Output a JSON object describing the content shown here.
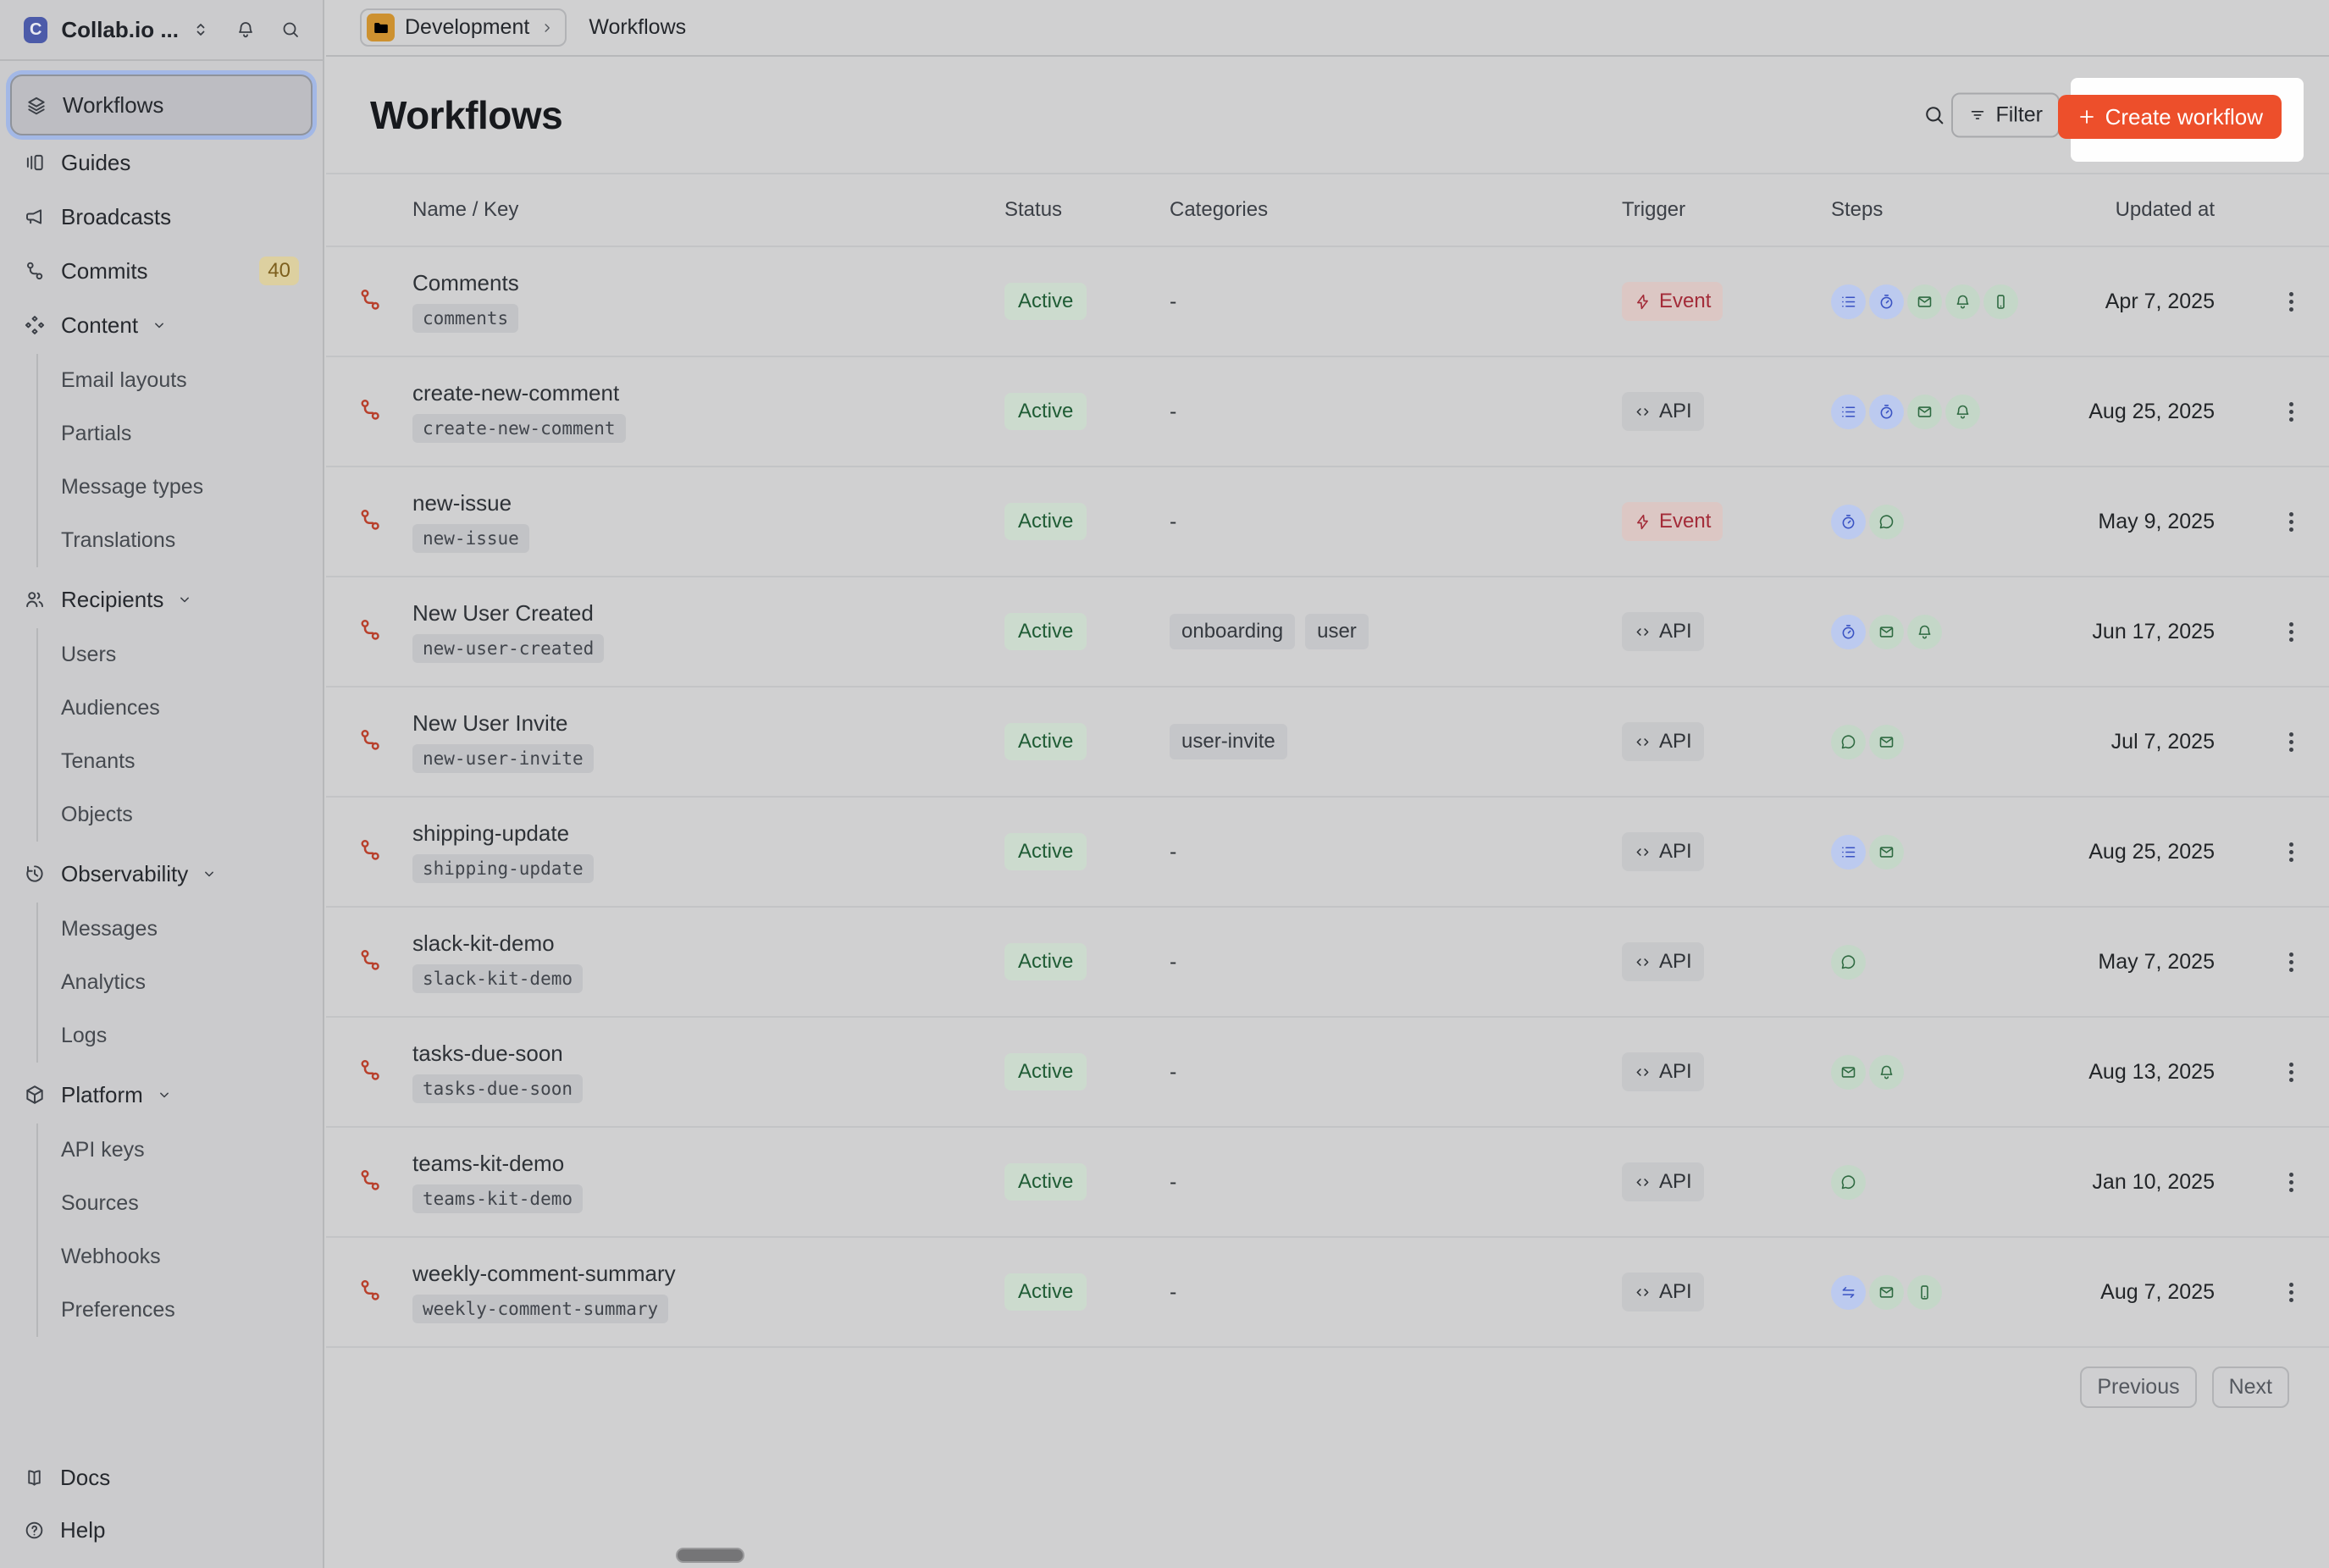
{
  "brand": {
    "name": "Collab.io ...",
    "logo_letter": "C"
  },
  "topbar": {
    "environment": "Development",
    "page": "Workflows"
  },
  "sidebar": {
    "items": [
      {
        "label": "Workflows",
        "icon": "layers",
        "selected": true
      },
      {
        "label": "Guides",
        "icon": "guides"
      },
      {
        "label": "Broadcasts",
        "icon": "megaphone"
      },
      {
        "label": "Commits",
        "icon": "commit",
        "badge": "40"
      },
      {
        "label": "Content",
        "icon": "content",
        "expandable": true,
        "children": [
          "Email layouts",
          "Partials",
          "Message types",
          "Translations"
        ]
      },
      {
        "label": "Recipients",
        "icon": "people",
        "expandable": true,
        "children": [
          "Users",
          "Audiences",
          "Tenants",
          "Objects"
        ]
      },
      {
        "label": "Observability",
        "icon": "history",
        "expandable": true,
        "children": [
          "Messages",
          "Analytics",
          "Logs"
        ]
      },
      {
        "label": "Platform",
        "icon": "box",
        "expandable": true,
        "children": [
          "API keys",
          "Sources",
          "Webhooks",
          "Preferences"
        ]
      }
    ],
    "footer_items": [
      {
        "label": "Docs",
        "icon": "book"
      },
      {
        "label": "Help",
        "icon": "help"
      }
    ]
  },
  "header": {
    "title": "Workflows",
    "filter_label": "Filter",
    "create_label": "Create workflow"
  },
  "table": {
    "columns": [
      "Name / Key",
      "Status",
      "Categories",
      "Trigger",
      "Steps",
      "Updated at"
    ],
    "empty_categories": "-",
    "rows": [
      {
        "name": "Comments",
        "key": "comments",
        "status": "Active",
        "categories": [],
        "trigger": "Event",
        "steps": [
          {
            "icon": "list",
            "tone": "blue"
          },
          {
            "icon": "timer",
            "tone": "blue"
          },
          {
            "icon": "email",
            "tone": "green"
          },
          {
            "icon": "bell",
            "tone": "green"
          },
          {
            "icon": "phone",
            "tone": "green"
          }
        ],
        "updated": "Apr 7, 2025"
      },
      {
        "name": "create-new-comment",
        "key": "create-new-comment",
        "status": "Active",
        "categories": [],
        "trigger": "API",
        "steps": [
          {
            "icon": "list",
            "tone": "blue"
          },
          {
            "icon": "timer",
            "tone": "blue"
          },
          {
            "icon": "email",
            "tone": "green"
          },
          {
            "icon": "bell",
            "tone": "green"
          }
        ],
        "updated": "Aug 25, 2025"
      },
      {
        "name": "new-issue",
        "key": "new-issue",
        "status": "Active",
        "categories": [],
        "trigger": "Event",
        "steps": [
          {
            "icon": "timer",
            "tone": "blue"
          },
          {
            "icon": "chat",
            "tone": "green"
          }
        ],
        "updated": "May 9, 2025"
      },
      {
        "name": "New User Created",
        "key": "new-user-created",
        "status": "Active",
        "categories": [
          "onboarding",
          "user"
        ],
        "trigger": "API",
        "steps": [
          {
            "icon": "timer",
            "tone": "blue"
          },
          {
            "icon": "email",
            "tone": "green"
          },
          {
            "icon": "bell",
            "tone": "green"
          }
        ],
        "updated": "Jun 17, 2025"
      },
      {
        "name": "New User Invite",
        "key": "new-user-invite",
        "status": "Active",
        "categories": [
          "user-invite"
        ],
        "trigger": "API",
        "steps": [
          {
            "icon": "chat",
            "tone": "green"
          },
          {
            "icon": "email",
            "tone": "green"
          }
        ],
        "updated": "Jul 7, 2025"
      },
      {
        "name": "shipping-update",
        "key": "shipping-update",
        "status": "Active",
        "categories": [],
        "trigger": "API",
        "steps": [
          {
            "icon": "list",
            "tone": "blue"
          },
          {
            "icon": "email",
            "tone": "green"
          }
        ],
        "updated": "Aug 25, 2025"
      },
      {
        "name": "slack-kit-demo",
        "key": "slack-kit-demo",
        "status": "Active",
        "categories": [],
        "trigger": "API",
        "steps": [
          {
            "icon": "chat",
            "tone": "green"
          }
        ],
        "updated": "May 7, 2025"
      },
      {
        "name": "tasks-due-soon",
        "key": "tasks-due-soon",
        "status": "Active",
        "categories": [],
        "trigger": "API",
        "steps": [
          {
            "icon": "email",
            "tone": "green"
          },
          {
            "icon": "bell",
            "tone": "green"
          }
        ],
        "updated": "Aug 13, 2025"
      },
      {
        "name": "teams-kit-demo",
        "key": "teams-kit-demo",
        "status": "Active",
        "categories": [],
        "trigger": "API",
        "steps": [
          {
            "icon": "chat",
            "tone": "green"
          }
        ],
        "updated": "Jan 10, 2025"
      },
      {
        "name": "weekly-comment-summary",
        "key": "weekly-comment-summary",
        "status": "Active",
        "categories": [],
        "trigger": "API",
        "steps": [
          {
            "icon": "fetch",
            "tone": "blue"
          },
          {
            "icon": "email",
            "tone": "green"
          },
          {
            "icon": "phone",
            "tone": "green"
          }
        ],
        "updated": "Aug 7, 2025"
      }
    ]
  },
  "pagination": {
    "previous": "Previous",
    "next": "Next"
  },
  "colors": {
    "accent": "#ed4f2b",
    "spotlight": "#fefefe",
    "active_badge_bg": "#ccdbce",
    "active_badge_text": "#1f5c35",
    "event_bg": "#dcc7c4",
    "event_text": "#a32b38",
    "step_blue_bg": "#bccaef",
    "step_blue_icon": "#3a53c4",
    "step_green_bg": "#c4d7c8",
    "step_green_icon": "#2e6a41",
    "workflow_icon": "#b8402c",
    "badge_40_bg": "#ddd0a0",
    "badge_40_text": "#7d5f1d"
  }
}
